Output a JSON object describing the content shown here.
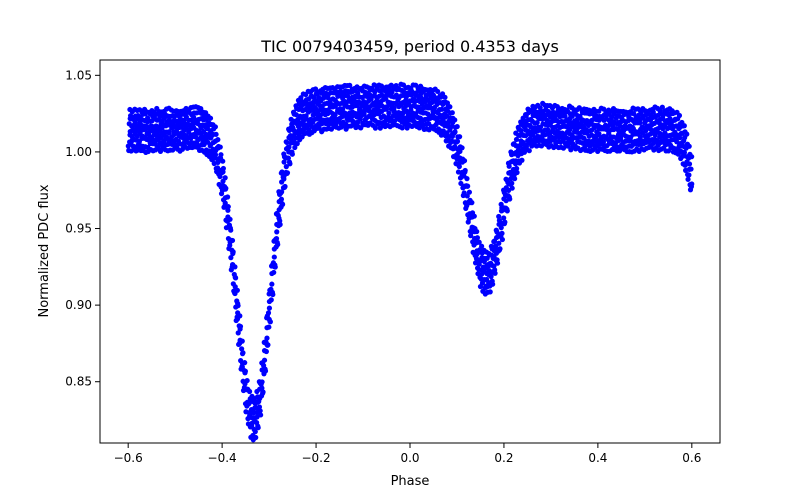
{
  "chart_data": {
    "type": "scatter",
    "title": "TIC 0079403459, period 0.4353 days",
    "xlabel": "Phase",
    "ylabel": "Normalized PDC flux",
    "xlim": [
      -0.66,
      0.66
    ],
    "ylim": [
      0.81,
      1.06
    ],
    "xticks": [
      -0.6,
      -0.4,
      -0.2,
      0.0,
      0.2,
      0.4,
      0.6
    ],
    "xtick_labels": [
      "−0.6",
      "−0.4",
      "−0.2",
      "0.0",
      "0.2",
      "0.4",
      "0.6"
    ],
    "yticks": [
      0.85,
      0.9,
      0.95,
      1.0,
      1.05
    ],
    "ytick_labels": [
      "0.85",
      "0.90",
      "0.95",
      "1.00",
      "1.05"
    ],
    "grid": false,
    "legend": "none",
    "point_color": "#0000ff",
    "phase_range": [
      -0.6,
      0.6
    ],
    "light_curve_model": {
      "baseline": 1.022,
      "envelope_half_width": 0.013,
      "primary_eclipse": {
        "phase": -0.333,
        "depth": 0.195,
        "width": 0.036
      },
      "secondary_eclipse": {
        "phase": 0.162,
        "depth": 0.103,
        "width": 0.036
      }
    }
  }
}
